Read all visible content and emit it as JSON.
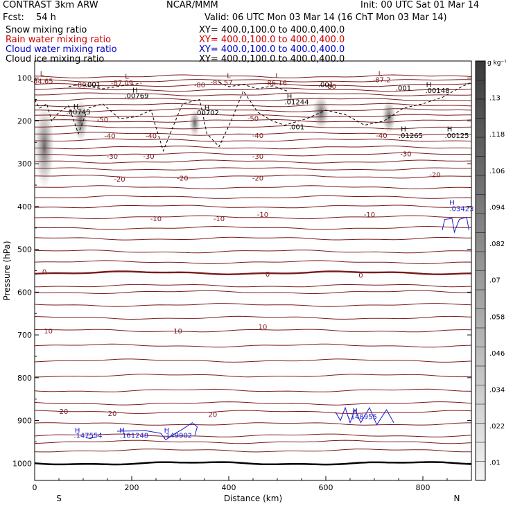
{
  "header": {
    "model": "CONTRAST  3km ARW",
    "org": "NCAR/MMM",
    "init": "Init: 00 UTC Sat 01 Mar 14",
    "fcst_label": "Fcst:",
    "fcst_value": "54 h",
    "valid": "Valid: 06 UTC Mon 03 Mar 14 (16 ChT Mon 03 Mar 14)"
  },
  "legend": [
    {
      "name": "Snow mixing ratio",
      "xy": "XY= 400.0,100.0 to 400.0,400.0",
      "color": "#000000"
    },
    {
      "name": "Rain water mixing ratio",
      "xy": "XY= 400.0,100.0 to 400.0,400.0",
      "color": "#cc0000"
    },
    {
      "name": "Cloud water mixing ratio",
      "xy": "XY= 400.0,100.0 to 400.0,400.0",
      "color": "#0000cc"
    },
    {
      "name": "Cloud ice mixing ratio",
      "xy": "XY= 400.0,100.0 to 400.0,400.0",
      "color": "#000000"
    }
  ],
  "colors": {
    "temperature": "#7a1a1a",
    "cloud_water": "#1a1acc",
    "ice": "#000000"
  },
  "chart_data": {
    "type": "cross-section",
    "xlabel": "Distance (km)",
    "ylabel": "Pressure (hPa)",
    "xlim": [
      0,
      900
    ],
    "ylim": [
      1040,
      60
    ],
    "x_ticks": [
      0,
      200,
      400,
      600,
      800
    ],
    "x_tick_labels": [
      "0",
      "200",
      "400",
      "600",
      "800"
    ],
    "y_ticks": [
      100,
      200,
      300,
      400,
      500,
      600,
      700,
      800,
      900,
      1000
    ],
    "y_tick_labels": [
      "100",
      "200",
      "300",
      "400",
      "500",
      "600",
      "700",
      "800",
      "900",
      "1000"
    ],
    "x_end_labels": {
      "left": "S",
      "right": "N"
    },
    "colorbar": {
      "units": "g kg⁻¹",
      "tick_labels": [
        ".01",
        ".022",
        ".034",
        ".046",
        ".058",
        ".07",
        ".082",
        ".094",
        ".106",
        ".118",
        ".13"
      ],
      "ticks": [
        0.01,
        0.022,
        0.034,
        0.046,
        0.058,
        0.07,
        0.082,
        0.094,
        0.106,
        0.118,
        0.13
      ],
      "range": [
        0.004,
        0.142
      ]
    },
    "temperature_isotherm_levels": [
      {
        "p": 1000,
        "label": ""
      },
      {
        "p": 970,
        "label": ""
      },
      {
        "p": 950,
        "label": ""
      },
      {
        "p": 935,
        "label": ""
      },
      {
        "p": 908,
        "label": ""
      },
      {
        "p": 880,
        "label": "20"
      },
      {
        "p": 860,
        "label": ""
      },
      {
        "p": 830,
        "label": ""
      },
      {
        "p": 795,
        "label": ""
      },
      {
        "p": 760,
        "label": ""
      },
      {
        "p": 725,
        "label": ""
      },
      {
        "p": 690,
        "label": "10"
      },
      {
        "p": 660,
        "label": ""
      },
      {
        "p": 630,
        "label": ""
      },
      {
        "p": 600,
        "label": ""
      },
      {
        "p": 585,
        "label": ""
      },
      {
        "p": 555,
        "label": "0"
      },
      {
        "p": 530,
        "label": ""
      },
      {
        "p": 505,
        "label": ""
      },
      {
        "p": 475,
        "label": ""
      },
      {
        "p": 450,
        "label": ""
      },
      {
        "p": 425,
        "label": "-10"
      },
      {
        "p": 400,
        "label": ""
      },
      {
        "p": 378,
        "label": ""
      },
      {
        "p": 355,
        "label": ""
      },
      {
        "p": 330,
        "label": "-20"
      },
      {
        "p": 312,
        "label": ""
      },
      {
        "p": 295,
        "label": ""
      },
      {
        "p": 278,
        "label": "-30"
      },
      {
        "p": 262,
        "label": ""
      },
      {
        "p": 245,
        "label": ""
      },
      {
        "p": 230,
        "label": "-40"
      },
      {
        "p": 215,
        "label": ""
      },
      {
        "p": 200,
        "label": ""
      },
      {
        "p": 188,
        "label": "-50"
      },
      {
        "p": 175,
        "label": ""
      },
      {
        "p": 163,
        "label": ""
      },
      {
        "p": 150,
        "label": ""
      },
      {
        "p": 138,
        "label": ""
      },
      {
        "p": 127,
        "label": "-80"
      },
      {
        "p": 116,
        "label": ""
      },
      {
        "p": 106,
        "label": ""
      },
      {
        "p": 96,
        "label": ""
      }
    ],
    "annotations": [
      {
        "text": "L",
        "x": 15,
        "p": 88,
        "color": "temperature"
      },
      {
        "text": "-84.65",
        "x": 15,
        "p": 106,
        "color": "temperature"
      },
      {
        "text": "L",
        "x": 190,
        "p": 95,
        "color": "temperature"
      },
      {
        "text": "-87.09",
        "x": 180,
        "p": 110,
        "color": "temperature"
      },
      {
        "text": "L",
        "x": 400,
        "p": 93,
        "color": "temperature"
      },
      {
        "text": "-85.57",
        "x": 385,
        "p": 109,
        "color": "temperature"
      },
      {
        "text": "L",
        "x": 500,
        "p": 93,
        "color": "temperature"
      },
      {
        "text": "-86.16",
        "x": 497,
        "p": 110,
        "color": "temperature"
      },
      {
        "text": "L",
        "x": 712,
        "p": 88,
        "color": "temperature"
      },
      {
        "text": "-87.2",
        "x": 715,
        "p": 103,
        "color": "temperature"
      },
      {
        "text": "-80",
        "x": 95,
        "p": 115,
        "color": "temperature"
      },
      {
        "text": "-80",
        "x": 340,
        "p": 115,
        "color": "temperature"
      },
      {
        "text": "-80",
        "x": 610,
        "p": 118,
        "color": "temperature"
      },
      {
        "text": "-50",
        "x": 140,
        "p": 196,
        "color": "temperature"
      },
      {
        "text": "-50",
        "x": 450,
        "p": 194,
        "color": "temperature"
      },
      {
        "text": "-40",
        "x": 155,
        "p": 234,
        "color": "temperature"
      },
      {
        "text": "-40",
        "x": 240,
        "p": 234,
        "color": "temperature"
      },
      {
        "text": "-40",
        "x": 460,
        "p": 233,
        "color": "temperature"
      },
      {
        "text": "-40",
        "x": 715,
        "p": 233,
        "color": "temperature"
      },
      {
        "text": "-30",
        "x": 160,
        "p": 282,
        "color": "temperature"
      },
      {
        "text": "-30",
        "x": 235,
        "p": 282,
        "color": "temperature"
      },
      {
        "text": "-30",
        "x": 460,
        "p": 282,
        "color": "temperature"
      },
      {
        "text": "-30",
        "x": 765,
        "p": 276,
        "color": "temperature"
      },
      {
        "text": "-20",
        "x": 175,
        "p": 335,
        "color": "temperature"
      },
      {
        "text": "-20",
        "x": 305,
        "p": 333,
        "color": "temperature"
      },
      {
        "text": "-20",
        "x": 460,
        "p": 333,
        "color": "temperature"
      },
      {
        "text": "-20",
        "x": 825,
        "p": 325,
        "color": "temperature"
      },
      {
        "text": "-10",
        "x": 250,
        "p": 428,
        "color": "temperature"
      },
      {
        "text": "-10",
        "x": 380,
        "p": 428,
        "color": "temperature"
      },
      {
        "text": "-10",
        "x": 470,
        "p": 418,
        "color": "temperature"
      },
      {
        "text": "-10",
        "x": 690,
        "p": 418,
        "color": "temperature"
      },
      {
        "text": "0",
        "x": 20,
        "p": 552,
        "color": "temperature"
      },
      {
        "text": "0",
        "x": 480,
        "p": 557,
        "color": "temperature"
      },
      {
        "text": "0",
        "x": 672,
        "p": 560,
        "color": "temperature"
      },
      {
        "text": "10",
        "x": 28,
        "p": 690,
        "color": "temperature"
      },
      {
        "text": "10",
        "x": 295,
        "p": 690,
        "color": "temperature"
      },
      {
        "text": "10",
        "x": 470,
        "p": 680,
        "color": "temperature"
      },
      {
        "text": "20",
        "x": 60,
        "p": 878,
        "color": "temperature"
      },
      {
        "text": "20",
        "x": 160,
        "p": 883,
        "color": "temperature"
      },
      {
        "text": "20",
        "x": 367,
        "p": 885,
        "color": "temperature"
      },
      {
        "text": "H",
        "x": 85,
        "p": 165,
        "color": "ice"
      },
      {
        "text": ".00743",
        "x": 90,
        "p": 178,
        "color": "ice"
      },
      {
        "text": "H",
        "x": 207,
        "p": 127,
        "color": "ice"
      },
      {
        "text": ".00769",
        "x": 210,
        "p": 140,
        "color": "ice"
      },
      {
        "text": "H",
        "x": 355,
        "p": 168,
        "color": "ice"
      },
      {
        "text": ".00702",
        "x": 355,
        "p": 180,
        "color": "ice"
      },
      {
        "text": "H",
        "x": 525,
        "p": 142,
        "color": "ice"
      },
      {
        "text": ".01244",
        "x": 540,
        "p": 155,
        "color": "ice"
      },
      {
        "text": ".001",
        "x": 120,
        "p": 114,
        "color": "ice"
      },
      {
        "text": ".001",
        "x": 600,
        "p": 114,
        "color": "ice"
      },
      {
        "text": ".001",
        "x": 760,
        "p": 122,
        "color": "ice"
      },
      {
        "text": ".001",
        "x": 540,
        "p": 213,
        "color": "ice"
      },
      {
        "text": "H",
        "x": 812,
        "p": 114,
        "color": "ice"
      },
      {
        "text": ".00148",
        "x": 830,
        "p": 128,
        "color": "ice"
      },
      {
        "text": "H",
        "x": 760,
        "p": 218,
        "color": "ice"
      },
      {
        "text": ".01265",
        "x": 775,
        "p": 233,
        "color": "ice"
      },
      {
        "text": "H",
        "x": 855,
        "p": 218,
        "color": "ice"
      },
      {
        "text": ".00125",
        "x": 870,
        "p": 233,
        "color": "ice"
      },
      {
        "text": "H",
        "x": 860,
        "p": 390,
        "color": "cloud_water"
      },
      {
        "text": ".03423",
        "x": 880,
        "p": 404,
        "color": "cloud_water"
      },
      {
        "text": "H",
        "x": 660,
        "p": 876,
        "color": "cloud_water"
      },
      {
        "text": ".148955",
        "x": 676,
        "p": 890,
        "color": "cloud_water"
      },
      {
        "text": "H",
        "x": 88,
        "p": 922,
        "color": "cloud_water"
      },
      {
        "text": ".147554",
        "x": 110,
        "p": 934,
        "color": "cloud_water"
      },
      {
        "text": "H",
        "x": 180,
        "p": 922,
        "color": "cloud_water"
      },
      {
        "text": ".161248",
        "x": 205,
        "p": 934,
        "color": "cloud_water"
      },
      {
        "text": "H",
        "x": 272,
        "p": 922,
        "color": "cloud_water"
      },
      {
        "text": ".149902",
        "x": 295,
        "p": 934,
        "color": "cloud_water"
      }
    ]
  }
}
